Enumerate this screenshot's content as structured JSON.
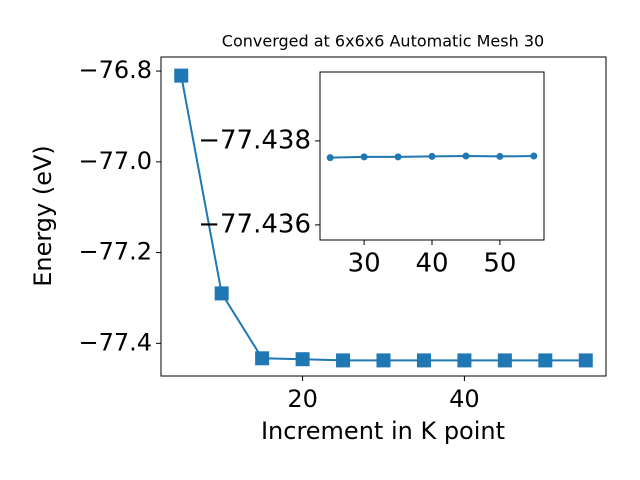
{
  "chart_data": [
    {
      "type": "line",
      "title": "Converged at 6x6x6 Automatic Mesh 30",
      "x_label": "Increment in K point",
      "y_label": "Energy (eV)",
      "x": [
        5,
        10,
        15,
        20,
        25,
        30,
        35,
        40,
        45,
        50,
        55
      ],
      "series": [
        {
          "color": "#1f77b4",
          "marker": "square",
          "values": [
            -76.81,
            -77.29,
            -77.433,
            -77.435,
            -77.4376,
            -77.43762,
            -77.43762,
            -77.43763,
            -77.43764,
            -77.43763,
            -77.43764
          ]
        }
      ],
      "xlim": [
        2.5,
        57.5
      ],
      "ylim": [
        -77.472,
        -76.769
      ],
      "xticks": [
        20,
        40
      ],
      "yticks": [
        {
          "value": -76.8,
          "label": "−76.8"
        },
        {
          "value": -77.0,
          "label": "−77.0"
        },
        {
          "value": -77.2,
          "label": "−77.2"
        },
        {
          "value": -77.4,
          "label": "−77.4"
        }
      ]
    },
    {
      "type": "line",
      "x": [
        25,
        30,
        35,
        40,
        45,
        50,
        55
      ],
      "series": [
        {
          "color": "#1f77b4",
          "marker": "circle",
          "values": [
            -77.4376,
            -77.43762,
            -77.43762,
            -77.43763,
            -77.43764,
            -77.43763,
            -77.43764
          ]
        }
      ],
      "xlim": [
        23.5,
        56.5
      ],
      "ylim": [
        -77.43564,
        -77.43964
      ],
      "xticks": [
        30,
        40,
        50
      ],
      "yticks": [
        {
          "value": -77.438,
          "label": "−77.438"
        },
        {
          "value": -77.436,
          "label": "−77.436"
        }
      ]
    }
  ]
}
